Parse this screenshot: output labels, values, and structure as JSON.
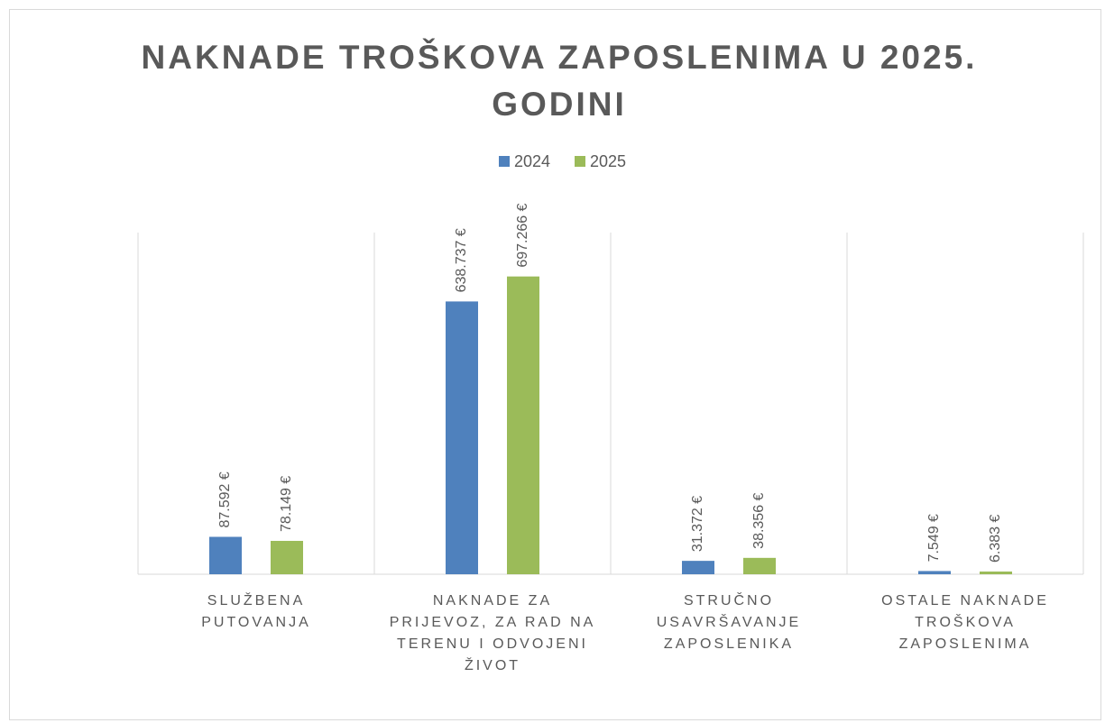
{
  "chart_data": {
    "type": "bar",
    "title": "NAKNADE TROŠKOVA ZAPOSLENIMA U 2025. GODINI",
    "categories": [
      "SLUŽBENA PUTOVANJA",
      "NAKNADE ZA PRIJEVOZ, ZA RAD NA TERENU I ODVOJENI ŽIVOT",
      "STRUČNO USAVRŠAVANJE ZAPOSLENIKA",
      "OSTALE NAKNADE TROŠKOVA ZAPOSLENIMA"
    ],
    "series": [
      {
        "name": "2024",
        "color": "#4f81bd",
        "values": [
          87592,
          638737,
          31372,
          7549
        ],
        "value_labels": [
          "87.592 €",
          "638.737 €",
          "31.372 €",
          "7.549 €"
        ]
      },
      {
        "name": "2025",
        "color": "#9bbb59",
        "values": [
          78149,
          697266,
          38356,
          6383
        ],
        "value_labels": [
          "78.149 €",
          "697.266 €",
          "38.356 €",
          "6.383 €"
        ]
      }
    ],
    "ylim": [
      0,
      800000
    ],
    "legend": "top"
  }
}
